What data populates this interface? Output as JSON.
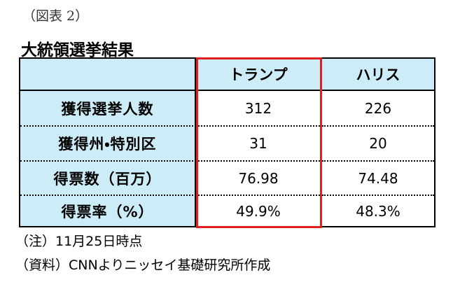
{
  "header": {
    "figure": "（図表 2）",
    "title": "大統領選挙結果"
  },
  "table": {
    "columns": [
      "トランプ",
      "ハリス"
    ],
    "rows": [
      {
        "label": "獲得選挙人数",
        "cells": [
          "312",
          "226"
        ]
      },
      {
        "label": "獲得州・特別区",
        "cells": [
          "31",
          "20"
        ]
      },
      {
        "label": "得票数（百万）",
        "cells": [
          "76.98",
          "74.48"
        ]
      },
      {
        "label": "得票率（%）",
        "cells": [
          "49.9%",
          "48.3%"
        ]
      }
    ]
  },
  "notes": [
    "（注）11月25日時点",
    "（資料）CNNよりニッセイ基礎研究所作成"
  ]
}
